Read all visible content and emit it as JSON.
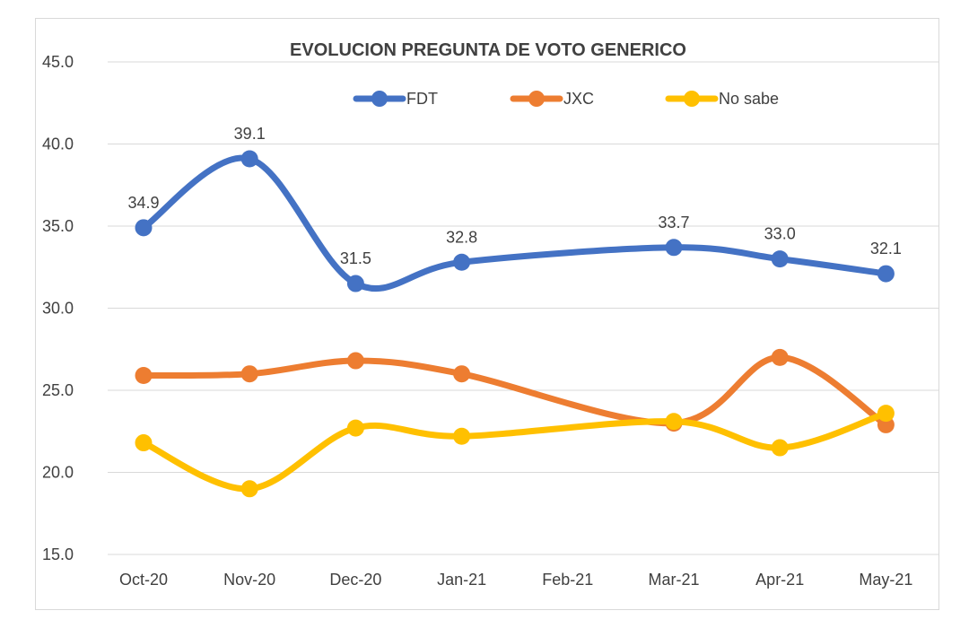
{
  "chart_data": {
    "type": "line",
    "title": "EVOLUCION PREGUNTA DE VOTO GENERICO",
    "xlabel": "",
    "ylabel": "",
    "categories": [
      "Oct-20",
      "Nov-20",
      "Dec-20",
      "Jan-21",
      "Feb-21",
      "Mar-21",
      "Apr-21",
      "May-21"
    ],
    "ylim": [
      15,
      45
    ],
    "yticks": [
      "15.0",
      "20.0",
      "25.0",
      "30.0",
      "35.0",
      "40.0",
      "45.0"
    ],
    "grid": true,
    "legend_position": "top",
    "smooth": true,
    "series": [
      {
        "name": "FDT",
        "color": "#4472C4",
        "values": [
          34.9,
          39.1,
          31.5,
          32.8,
          null,
          33.7,
          33.0,
          32.1
        ],
        "labels": [
          "34.9",
          "39.1",
          "31.5",
          "32.8",
          "",
          "33.7",
          "33.0",
          "32.1"
        ]
      },
      {
        "name": "JXC",
        "color": "#ED7D31",
        "values": [
          25.9,
          26.0,
          26.8,
          26.0,
          null,
          23.0,
          27.0,
          22.9
        ],
        "labels": []
      },
      {
        "name": "No sabe",
        "color": "#FFC000",
        "values": [
          21.8,
          19.0,
          22.7,
          22.2,
          null,
          23.1,
          21.5,
          23.6
        ],
        "labels": []
      }
    ]
  }
}
